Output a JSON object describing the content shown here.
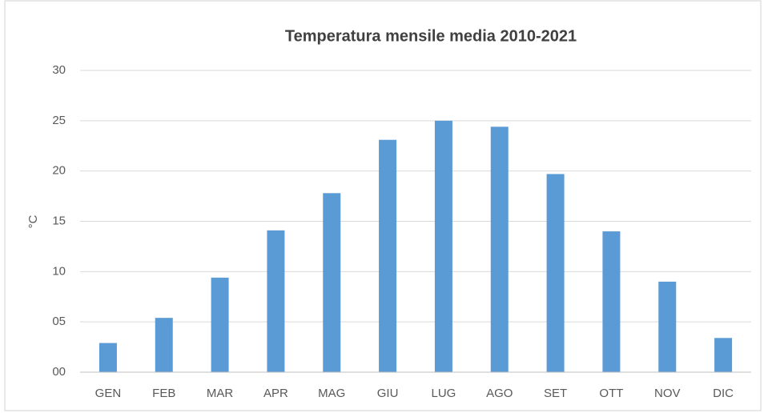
{
  "chart_data": {
    "type": "bar",
    "title": "Temperatura mensile media 2010-2021",
    "ylabel": "°C",
    "categories": [
      "GEN",
      "FEB",
      "MAR",
      "APR",
      "MAG",
      "GIU",
      "LUG",
      "AGO",
      "SET",
      "OTT",
      "NOV",
      "DIC"
    ],
    "values": [
      2.9,
      5.4,
      9.4,
      14.1,
      17.8,
      23.1,
      25.0,
      24.4,
      19.7,
      14.0,
      9.0,
      3.4
    ],
    "color": "#5b9bd5",
    "ylim": [
      0,
      30
    ],
    "yticks": [
      {
        "value": 0,
        "label": "00"
      },
      {
        "value": 5,
        "label": "05"
      },
      10,
      15,
      20,
      25,
      30
    ],
    "grid": true
  }
}
